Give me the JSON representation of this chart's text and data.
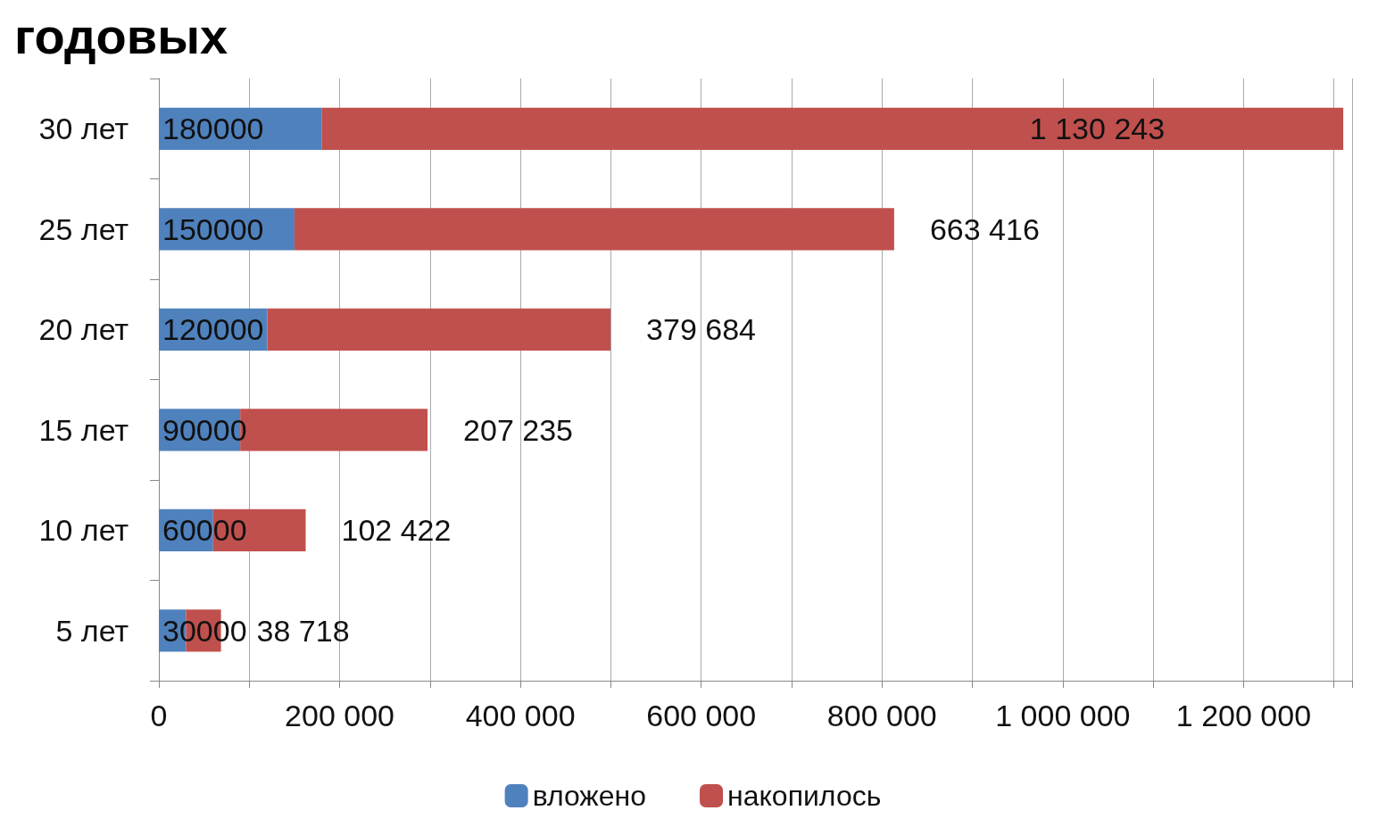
{
  "chart_data": {
    "type": "bar",
    "orientation": "horizontal",
    "stacked": true,
    "annotations": [
      "годовых"
    ],
    "categories": [
      "30 лет",
      "25 лет",
      "20 лет",
      "15 лет",
      "10 лет",
      "5 лет"
    ],
    "series": [
      {
        "name": "вложено",
        "color": "#4f81bd",
        "values": [
          180000,
          150000,
          120000,
          90000,
          60000,
          30000
        ],
        "value_labels": [
          "180000",
          "150000",
          "120000",
          "90000",
          "60000",
          "30000"
        ]
      },
      {
        "name": "накопилось",
        "color": "#c0504d",
        "values": [
          1130243,
          663416,
          379684,
          207235,
          102422,
          38718
        ],
        "value_labels": [
          "1 130 243",
          "663 416",
          "379 684",
          "207 235",
          "102 422",
          "38 718"
        ]
      }
    ],
    "xlim": [
      0,
      1320000
    ],
    "xticks": [
      {
        "value": 0,
        "label": "0"
      },
      {
        "value": 100000,
        "label": null
      },
      {
        "value": 200000,
        "label": "200 000"
      },
      {
        "value": 300000,
        "label": null
      },
      {
        "value": 400000,
        "label": "400 000"
      },
      {
        "value": 500000,
        "label": null
      },
      {
        "value": 600000,
        "label": "600 000"
      },
      {
        "value": 700000,
        "label": null
      },
      {
        "value": 800000,
        "label": "800 000"
      },
      {
        "value": 900000,
        "label": null
      },
      {
        "value": 1000000,
        "label": "1 000 000"
      },
      {
        "value": 1100000,
        "label": null
      },
      {
        "value": 1200000,
        "label": "1 200 000"
      }
    ],
    "grid": "x",
    "legend": "bottom"
  }
}
